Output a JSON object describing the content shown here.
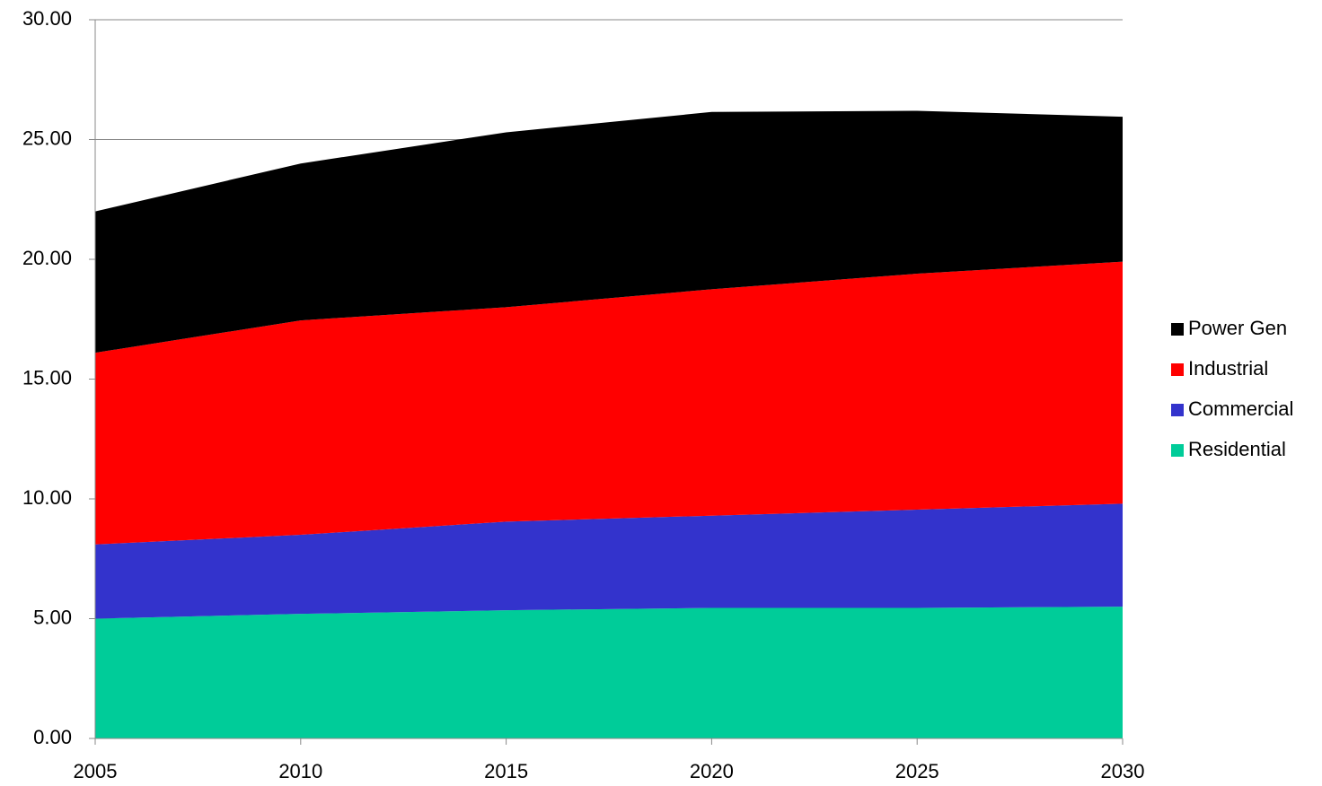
{
  "chart_data": {
    "type": "stacked-area",
    "x": [
      2005,
      2010,
      2015,
      2020,
      2025,
      2030
    ],
    "series": [
      {
        "name": "Residential",
        "color": "#00cc99",
        "values": [
          5.0,
          5.2,
          5.35,
          5.45,
          5.45,
          5.5
        ]
      },
      {
        "name": "Commercial",
        "color": "#3333cc",
        "values": [
          3.1,
          3.3,
          3.7,
          3.85,
          4.1,
          4.3
        ]
      },
      {
        "name": "Industrial",
        "color": "#ff0000",
        "values": [
          8.0,
          8.95,
          8.95,
          9.45,
          9.85,
          10.1
        ]
      },
      {
        "name": "Power Gen",
        "color": "#000000",
        "values": [
          5.9,
          6.55,
          7.3,
          7.4,
          6.8,
          6.05
        ]
      }
    ],
    "xlim": [
      2005,
      2030
    ],
    "xticks": [
      2005,
      2010,
      2015,
      2020,
      2025,
      2030
    ],
    "ylim": [
      0,
      30
    ],
    "yticks": [
      {
        "value": 0,
        "label": "0.00"
      },
      {
        "value": 5,
        "label": "5.00"
      },
      {
        "value": 10,
        "label": "10.00"
      },
      {
        "value": 15,
        "label": "15.00"
      },
      {
        "value": 20,
        "label": "20.00"
      },
      {
        "value": 25,
        "label": "25.00"
      },
      {
        "value": 30,
        "label": "30.00"
      }
    ],
    "grid": true,
    "legend": "right"
  }
}
